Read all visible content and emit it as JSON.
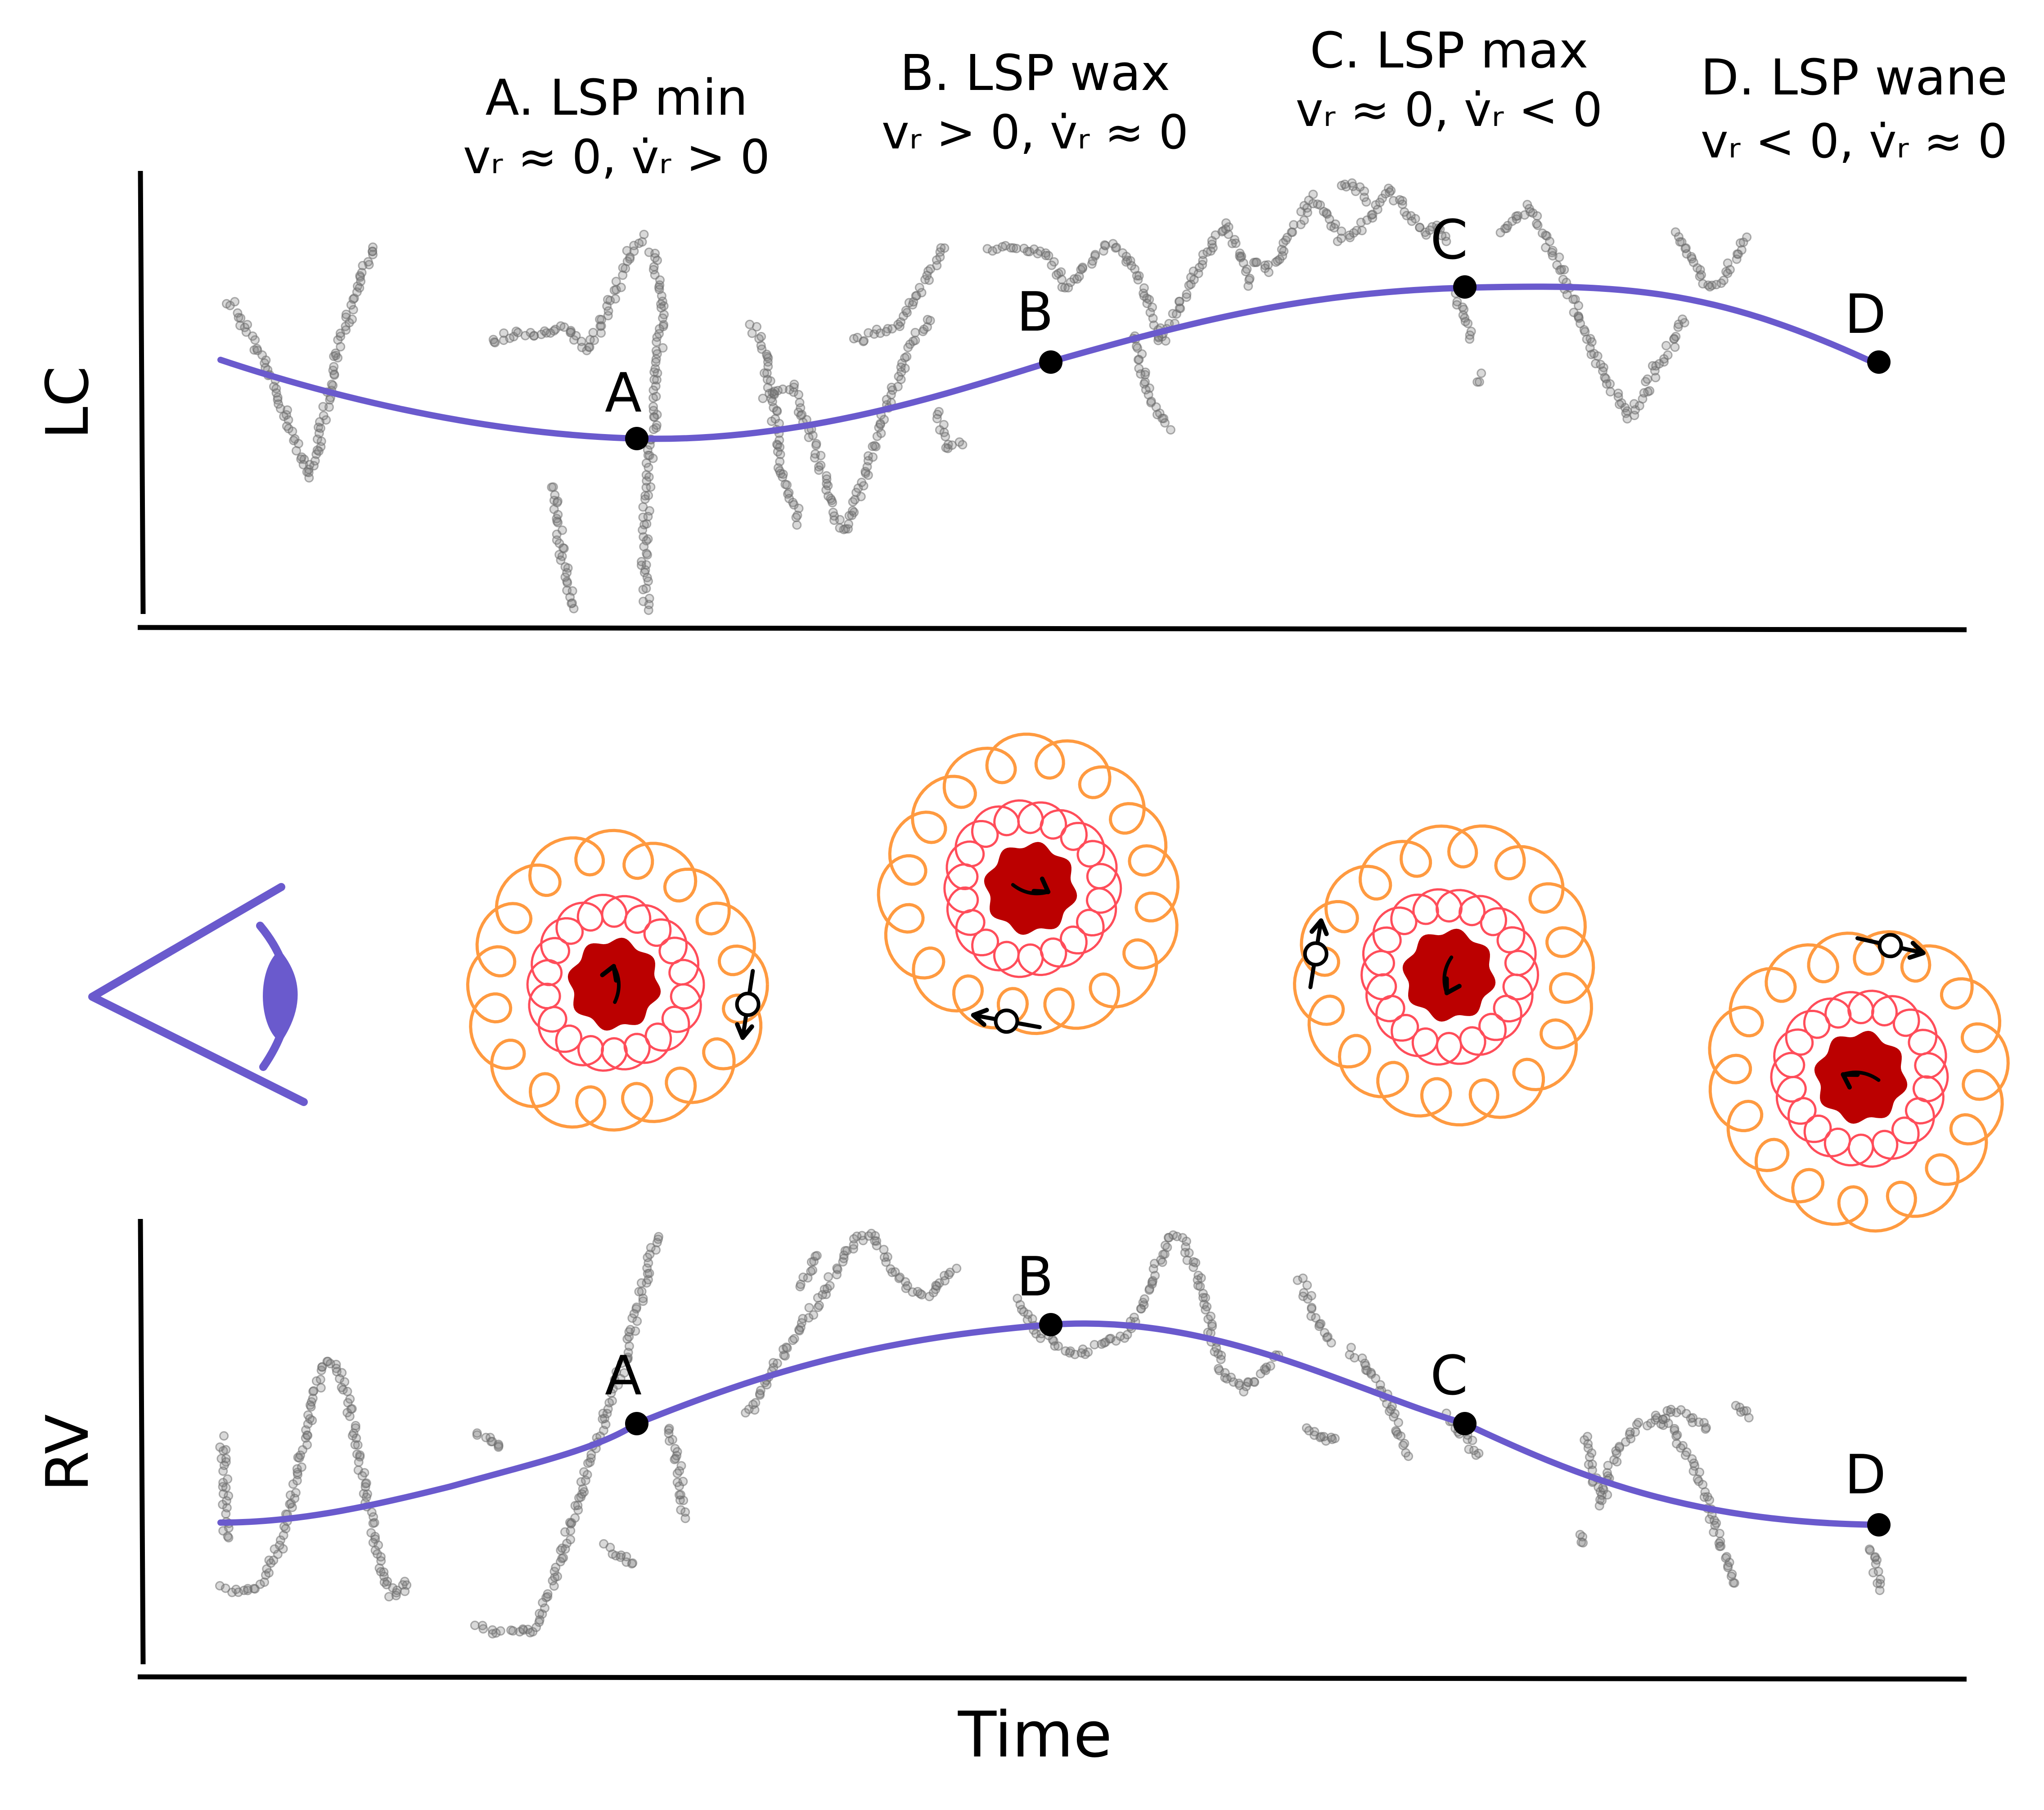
{
  "header": {
    "phases": [
      {
        "title": "A. LSP min",
        "cond": "vᵣ ≈ 0, v̇ᵣ > 0"
      },
      {
        "title": "B. LSP wax",
        "cond": "vᵣ > 0, v̇ᵣ ≈ 0"
      },
      {
        "title": "C. LSP max",
        "cond": "vᵣ ≈ 0, v̇ᵣ < 0"
      },
      {
        "title": "D. LSP wane",
        "cond": "vᵣ < 0, v̇ᵣ ≈ 0"
      }
    ]
  },
  "panels": {
    "lc": {
      "ylabel": "LC",
      "points": [
        {
          "label": "A"
        },
        {
          "label": "B"
        },
        {
          "label": "C"
        },
        {
          "label": "D"
        }
      ]
    },
    "rv": {
      "ylabel": "RV",
      "xlabel": "Time",
      "points": [
        {
          "label": "A"
        },
        {
          "label": "B"
        },
        {
          "label": "C"
        },
        {
          "label": "D"
        }
      ]
    }
  },
  "colors": {
    "trend": "#6a5acd",
    "scatter": "#777777",
    "core": "#bb0000",
    "inner_ring": "#ff4d5a",
    "outer_ring": "#ff9a40",
    "axis": "#000000"
  },
  "icons": {
    "observer": "eye-icon",
    "star": "star-icon"
  }
}
